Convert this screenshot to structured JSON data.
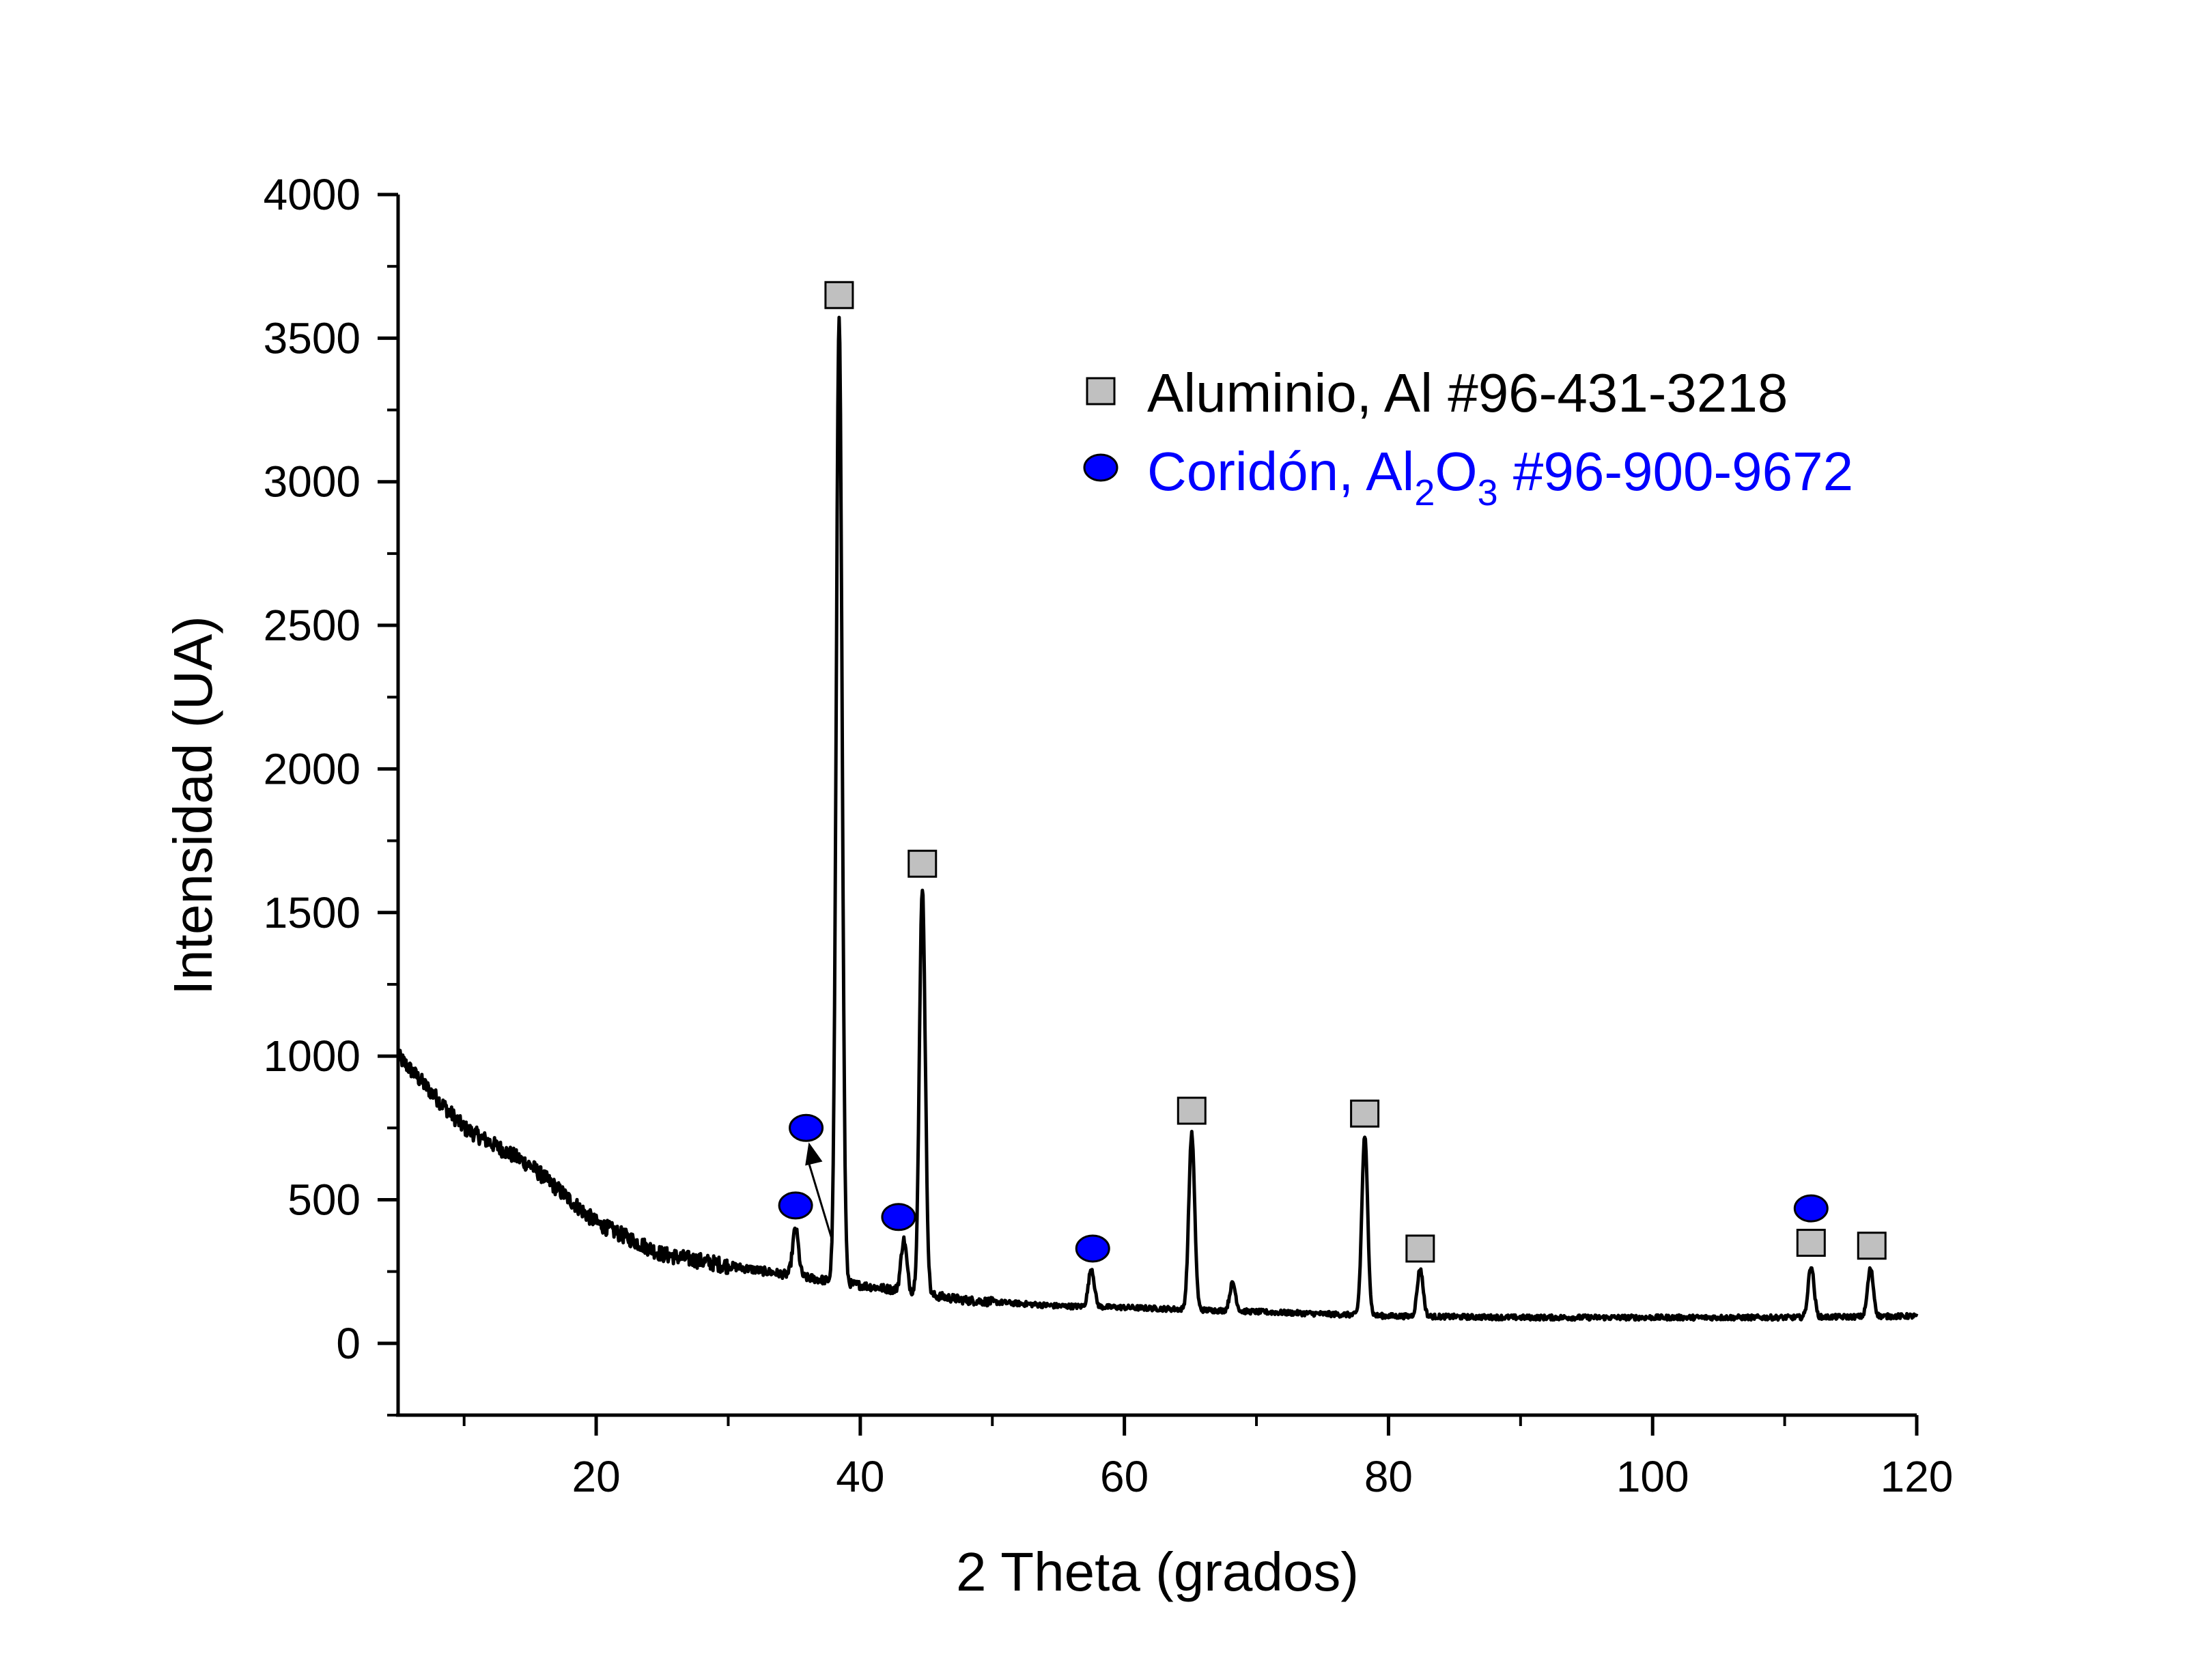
{
  "chart_data": {
    "type": "line",
    "xlabel": "2 Theta (grados)",
    "ylabel": "Intensidad (UA)",
    "xlim": [
      5,
      120
    ],
    "ylim": [
      -250,
      4000
    ],
    "x_ticks": [
      20,
      40,
      60,
      80,
      100,
      120
    ],
    "y_ticks": [
      0,
      500,
      1000,
      1500,
      2000,
      2500,
      3000,
      3500,
      4000
    ],
    "grid": false,
    "legend_position": "top-right",
    "colors": {
      "line": "#000000",
      "aluminio": "#c0c0c0",
      "coridon": "#0000ff"
    },
    "series": [
      {
        "x": [
          5,
          10,
          15,
          20,
          25,
          30,
          35,
          38,
          42,
          48,
          55,
          60,
          70,
          80,
          90,
          100,
          110,
          120
        ],
        "y": [
          1000,
          750,
          620,
          420,
          310,
          270,
          235,
          215,
          190,
          150,
          130,
          125,
          110,
          95,
          90,
          90,
          90,
          95
        ]
      }
    ],
    "peaks": [
      {
        "x": 35.1,
        "y": 400
      },
      {
        "x": 38.4,
        "y": 3580
      },
      {
        "x": 43.3,
        "y": 360
      },
      {
        "x": 44.7,
        "y": 1590
      },
      {
        "x": 57.5,
        "y": 260
      },
      {
        "x": 65.1,
        "y": 730
      },
      {
        "x": 68.2,
        "y": 210
      },
      {
        "x": 78.2,
        "y": 720
      },
      {
        "x": 82.4,
        "y": 260
      },
      {
        "x": 112.0,
        "y": 270
      },
      {
        "x": 116.5,
        "y": 260
      }
    ],
    "markers_aluminio": [
      {
        "x": 38.4,
        "y": 3650
      },
      {
        "x": 44.7,
        "y": 1670
      },
      {
        "x": 65.1,
        "y": 810
      },
      {
        "x": 78.2,
        "y": 800
      },
      {
        "x": 82.4,
        "y": 330
      },
      {
        "x": 112.0,
        "y": 350
      },
      {
        "x": 116.6,
        "y": 340
      }
    ],
    "markers_coridon": [
      {
        "x": 35.1,
        "y": 480
      },
      {
        "x": 35.9,
        "y": 750
      },
      {
        "x": 42.9,
        "y": 440
      },
      {
        "x": 57.6,
        "y": 330
      },
      {
        "x": 112.0,
        "y": 470
      }
    ],
    "arrow": {
      "from": [
        37.8,
        370
      ],
      "to": [
        36.1,
        700
      ]
    },
    "legend": {
      "aluminio_label": "Aluminio, Al #96-431-3218",
      "coridon_prefix": "Coridón, Al",
      "coridon_sub1": "2",
      "coridon_mid": "O",
      "coridon_sub2": "3",
      "coridon_suffix": " #96-900-9672"
    }
  }
}
